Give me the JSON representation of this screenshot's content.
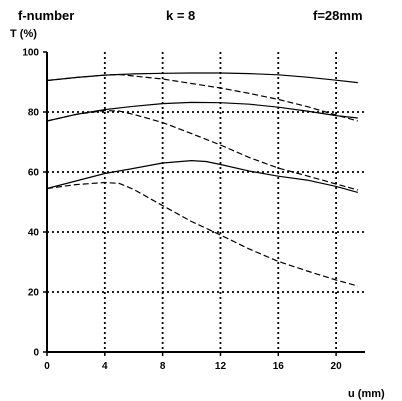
{
  "header": {
    "left": "f-number",
    "center": "k = 8",
    "right": "f=28mm"
  },
  "chart_data": {
    "type": "line",
    "title": "",
    "xlabel": "u (mm)",
    "ylabel": "T (%)",
    "xlim": [
      0,
      22
    ],
    "ylim": [
      0,
      100
    ],
    "xticks": [
      0,
      4,
      8,
      12,
      16,
      20
    ],
    "yticks": [
      0,
      20,
      40,
      60,
      80,
      100
    ],
    "grid": true,
    "grid_style": "dotted",
    "series": [
      {
        "style": "solid",
        "color": "#000000",
        "x": [
          0,
          2,
          4,
          6,
          8,
          10,
          12,
          14,
          16,
          18,
          20,
          21.5
        ],
        "y": [
          90.5,
          91.5,
          92.3,
          92.7,
          92.9,
          93.0,
          93.0,
          92.8,
          92.4,
          91.6,
          90.6,
          89.8
        ]
      },
      {
        "style": "dashed",
        "color": "#000000",
        "x": [
          0,
          2,
          4,
          5,
          6,
          8,
          10,
          12,
          14,
          16,
          18,
          20,
          21.5
        ],
        "y": [
          90.5,
          91.5,
          92.3,
          92.5,
          92.0,
          91.0,
          89.5,
          88.0,
          86.2,
          84.2,
          81.8,
          79.0,
          77.0
        ]
      },
      {
        "style": "solid",
        "color": "#000000",
        "x": [
          0,
          2,
          4,
          6,
          8,
          10,
          12,
          14,
          16,
          18,
          20,
          21.5
        ],
        "y": [
          77.0,
          79.2,
          80.8,
          81.9,
          82.8,
          83.2,
          83.1,
          82.6,
          81.6,
          80.3,
          78.8,
          78.0
        ]
      },
      {
        "style": "dashed",
        "color": "#000000",
        "x": [
          0,
          2,
          4,
          5,
          6,
          8,
          10,
          12,
          14,
          16,
          18,
          20,
          21.5
        ],
        "y": [
          77.0,
          79.2,
          80.5,
          80.3,
          79.2,
          76.5,
          72.8,
          69.0,
          64.8,
          61.3,
          58.7,
          56.0,
          54.0
        ]
      },
      {
        "style": "solid",
        "color": "#000000",
        "x": [
          0,
          2,
          4,
          6,
          8,
          10,
          11,
          12,
          14,
          16,
          18,
          20,
          21.5
        ],
        "y": [
          54.5,
          57.0,
          59.5,
          61.2,
          63.0,
          63.8,
          63.5,
          62.5,
          60.3,
          58.6,
          57.3,
          55.2,
          53.2
        ]
      },
      {
        "style": "dashed",
        "color": "#000000",
        "x": [
          0,
          2,
          4,
          5,
          6,
          8,
          10,
          12,
          14,
          16,
          18,
          20,
          21.5
        ],
        "y": [
          54.5,
          55.8,
          56.5,
          56.2,
          54.2,
          48.8,
          43.5,
          39.0,
          34.3,
          30.2,
          27.0,
          24.0,
          22.0
        ]
      }
    ]
  }
}
